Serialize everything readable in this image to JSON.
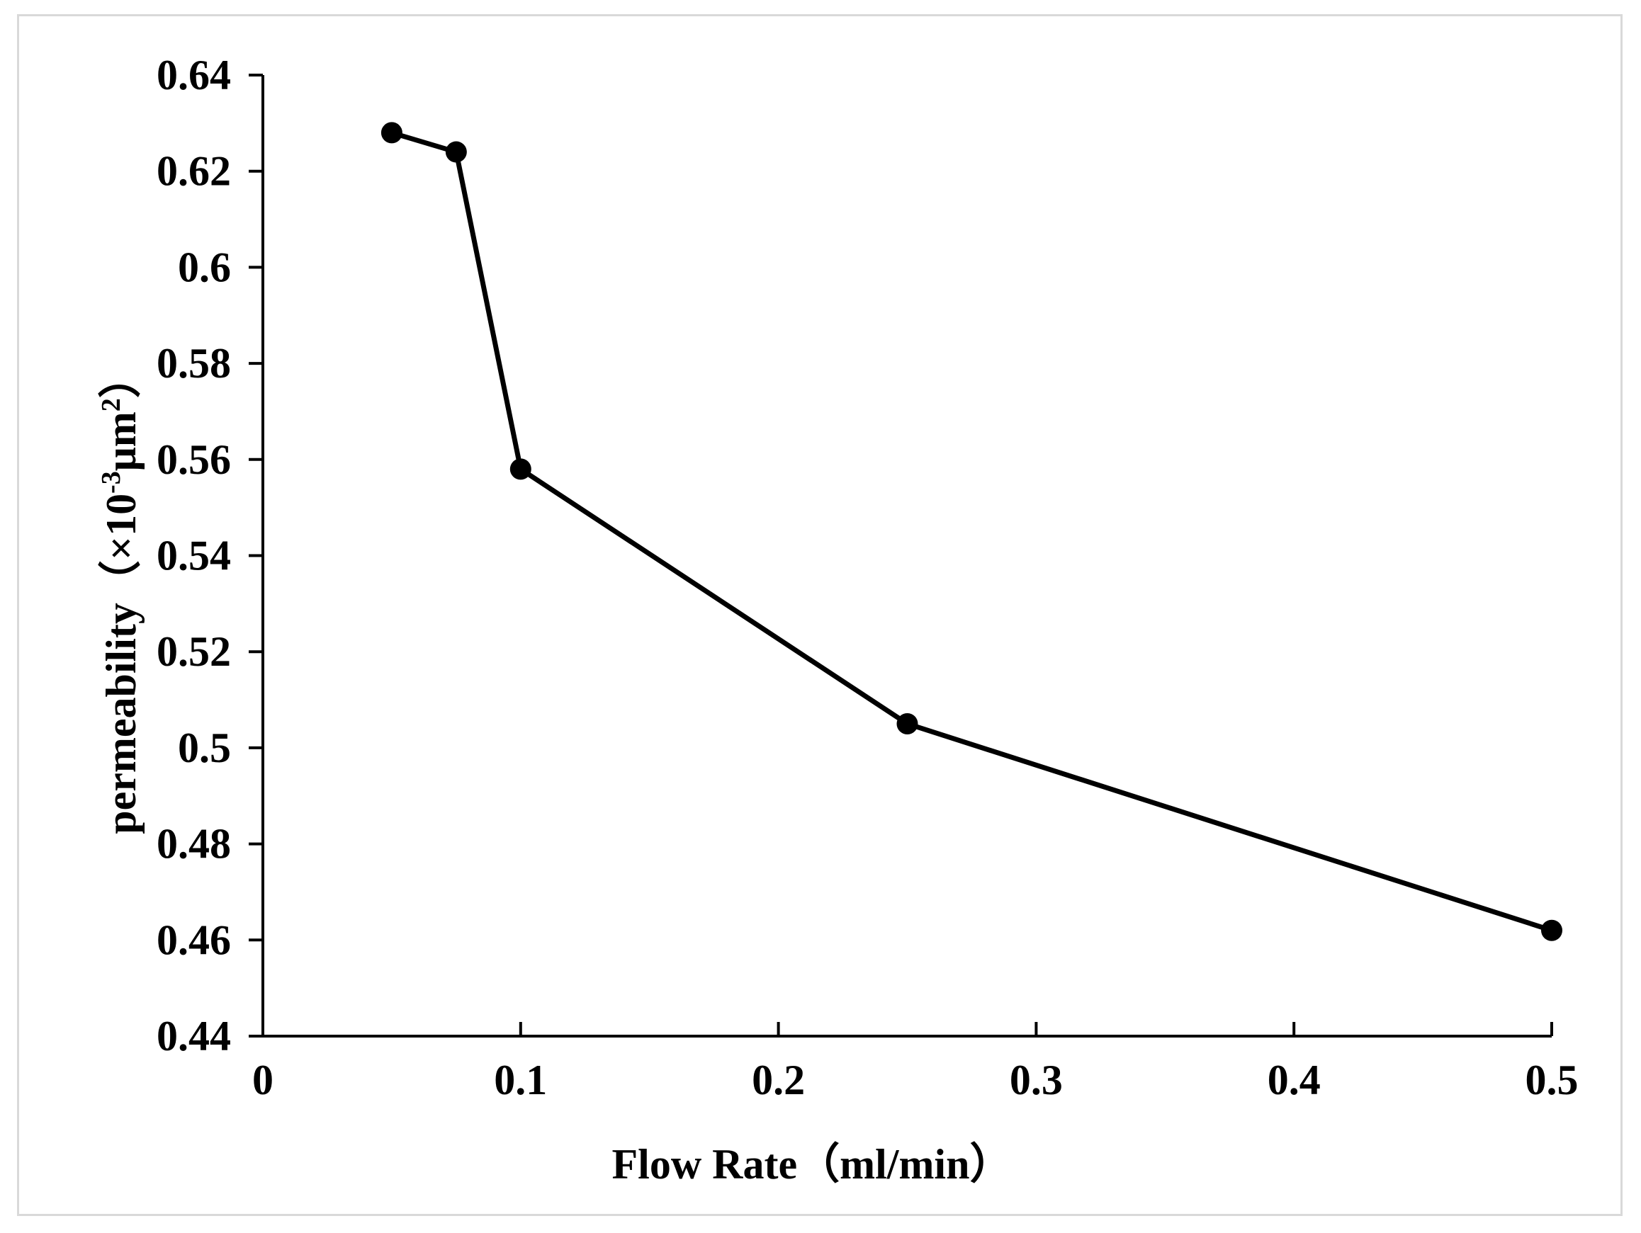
{
  "chart_data": {
    "type": "line",
    "title": "",
    "xlabel": "Flow Rate（ml/min）",
    "ylabel": "permeability（×10-3μm2）",
    "ylabel_parts": {
      "main": "permeability（×10",
      "sup1": "-3",
      "mid": "μm",
      "sup2": "2",
      "end": "）"
    },
    "xlim": [
      0,
      0.5
    ],
    "ylim": [
      0.44,
      0.64
    ],
    "xticks": [
      0,
      0.1,
      0.2,
      0.3,
      0.4,
      0.5
    ],
    "xtick_labels": [
      "0",
      "0.1",
      "0.2",
      "0.3",
      "0.4",
      "0.5"
    ],
    "yticks": [
      0.44,
      0.46,
      0.48,
      0.5,
      0.52,
      0.54,
      0.56,
      0.58,
      0.6,
      0.62,
      0.64
    ],
    "ytick_labels": [
      "0.44",
      "0.46",
      "0.48",
      "0.5",
      "0.52",
      "0.54",
      "0.56",
      "0.58",
      "0.6",
      "0.62",
      "0.64"
    ],
    "grid": false,
    "series": [
      {
        "name": "permeability",
        "x": [
          0.05,
          0.075,
          0.1,
          0.25,
          0.5
        ],
        "y": [
          0.628,
          0.624,
          0.558,
          0.505,
          0.462
        ],
        "color": "#000000",
        "marker": "circle"
      }
    ]
  }
}
